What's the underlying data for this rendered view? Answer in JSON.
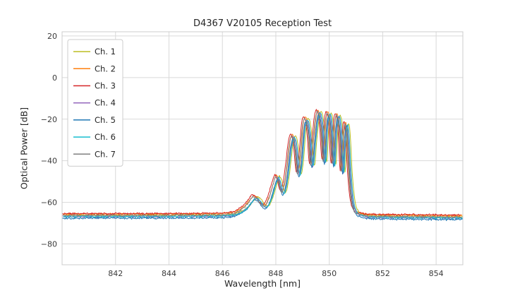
{
  "chart_data": {
    "type": "line",
    "title": "D4367 V20105 Reception Test",
    "xlabel": "Wavelength [nm]",
    "ylabel": "Optical Power [dB]",
    "xlim": [
      840,
      855
    ],
    "ylim": [
      -90,
      22
    ],
    "xticks": [
      842,
      844,
      846,
      848,
      850,
      852,
      854
    ],
    "yticks": [
      20,
      0,
      -20,
      -40,
      -60,
      -80
    ],
    "grid": true,
    "grid_color": "#d9d9d9",
    "spine_color": "#cccccc",
    "legend_position": "upper left",
    "noise_floor_db": -66.5,
    "base_curve": [
      [
        840.0,
        -66.5
      ],
      [
        840.5,
        -66.5
      ],
      [
        841.0,
        -66.5
      ],
      [
        841.5,
        -66.5
      ],
      [
        842.0,
        -66.5
      ],
      [
        842.5,
        -66.5
      ],
      [
        843.0,
        -66.5
      ],
      [
        843.5,
        -66.5
      ],
      [
        844.0,
        -66.5
      ],
      [
        844.5,
        -66.4
      ],
      [
        845.0,
        -66.4
      ],
      [
        845.5,
        -66.3
      ],
      [
        846.0,
        -66.2
      ],
      [
        846.4,
        -65.8
      ],
      [
        846.7,
        -64.3
      ],
      [
        846.9,
        -62.3
      ],
      [
        847.05,
        -59.8
      ],
      [
        847.2,
        -57.6
      ],
      [
        847.35,
        -58.6
      ],
      [
        847.5,
        -61.3
      ],
      [
        847.65,
        -61.8
      ],
      [
        847.8,
        -57.8
      ],
      [
        847.95,
        -51.5
      ],
      [
        848.05,
        -47.8
      ],
      [
        848.15,
        -50.5
      ],
      [
        848.25,
        -55.5
      ],
      [
        848.35,
        -52.5
      ],
      [
        848.45,
        -43.5
      ],
      [
        848.55,
        -32.5
      ],
      [
        848.65,
        -28.2
      ],
      [
        848.75,
        -33.5
      ],
      [
        848.85,
        -46.5
      ],
      [
        848.95,
        -39.5
      ],
      [
        849.05,
        -23.5
      ],
      [
        849.15,
        -20.2
      ],
      [
        849.25,
        -26.5
      ],
      [
        849.35,
        -42.5
      ],
      [
        849.45,
        -29.5
      ],
      [
        849.55,
        -18.5
      ],
      [
        849.63,
        -17.0
      ],
      [
        849.72,
        -23.5
      ],
      [
        849.82,
        -40.5
      ],
      [
        849.9,
        -22.0
      ],
      [
        849.98,
        -17.4
      ],
      [
        850.06,
        -22.5
      ],
      [
        850.16,
        -42.0
      ],
      [
        850.24,
        -23.5
      ],
      [
        850.32,
        -18.4
      ],
      [
        850.41,
        -24.5
      ],
      [
        850.5,
        -45.5
      ],
      [
        850.56,
        -30.5
      ],
      [
        850.63,
        -22.6
      ],
      [
        850.69,
        -27.0
      ],
      [
        850.77,
        -46.0
      ],
      [
        850.86,
        -58.5
      ],
      [
        850.96,
        -63.8
      ],
      [
        851.1,
        -65.6
      ],
      [
        851.3,
        -66.4
      ],
      [
        851.6,
        -66.8
      ],
      [
        852.0,
        -66.9
      ],
      [
        852.5,
        -67.0
      ],
      [
        853.0,
        -67.0
      ],
      [
        853.5,
        -67.1
      ],
      [
        854.0,
        -67.1
      ],
      [
        854.5,
        -67.2
      ],
      [
        855.0,
        -67.2
      ]
    ],
    "series": [
      {
        "name": "Ch. 1",
        "color": "#bcbd22",
        "x_shift": 0.09,
        "y_shift": 0.3
      },
      {
        "name": "Ch. 2",
        "color": "#ff7f0e",
        "x_shift": -0.03,
        "y_shift": 0.9
      },
      {
        "name": "Ch. 3",
        "color": "#d62728",
        "x_shift": -0.09,
        "y_shift": 1.1
      },
      {
        "name": "Ch. 4",
        "color": "#9467bd",
        "x_shift": 0.03,
        "y_shift": -0.4
      },
      {
        "name": "Ch. 5",
        "color": "#1f77b4",
        "x_shift": 0.0,
        "y_shift": -1.1
      },
      {
        "name": "Ch. 6",
        "color": "#17becf",
        "x_shift": 0.05,
        "y_shift": -0.3
      },
      {
        "name": "Ch. 7",
        "color": "#7f7f7f",
        "x_shift": -0.05,
        "y_shift": 0.2
      }
    ]
  }
}
